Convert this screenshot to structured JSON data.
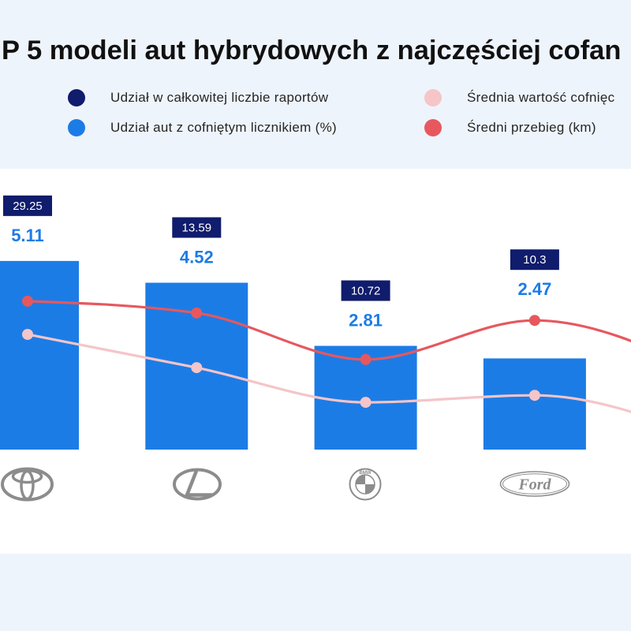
{
  "chart_data": {
    "type": "bar",
    "title": "P 5 modeli aut hybrydowych z najczęściej cofan",
    "axes_visible": false,
    "grid": false,
    "legend_position": "top",
    "category_logos": [
      {
        "icon": "toyota-logo"
      },
      {
        "icon": "lexus-logo"
      },
      {
        "icon": "bmw-logo",
        "lettering": "BMW"
      },
      {
        "icon": "ford-logo",
        "lettering": "Ford"
      }
    ],
    "series": [
      {
        "name": "Udział w całkowitej liczbie raportów",
        "type": "label",
        "color": "#101c6c",
        "values": [
          29.25,
          13.59,
          10.72,
          10.3,
          null
        ]
      },
      {
        "name": "Udział aut z cofniętym licznikiem (%)",
        "type": "bar",
        "color": "#1c7ce6",
        "values": [
          5.11,
          4.52,
          2.81,
          2.47,
          null
        ]
      },
      {
        "name": "Średnia wartość cofnięc",
        "type": "line",
        "color": "#f5c5c8",
        "values": [
          3.12,
          2.22,
          1.28,
          1.47,
          0.34
        ]
      },
      {
        "name": "Średni przebieg (km)",
        "type": "line",
        "color": "#e6585e",
        "values": [
          4.02,
          3.7,
          2.44,
          3.5,
          2.09
        ]
      }
    ]
  }
}
